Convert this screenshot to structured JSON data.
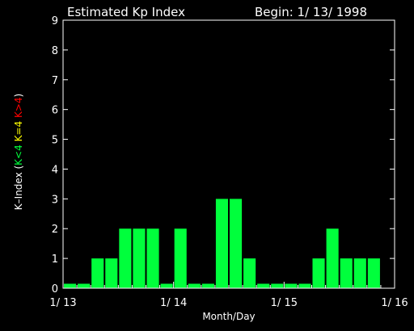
{
  "colors": {
    "background": "#000000",
    "foreground": "#ffffff",
    "bar": "#00ff3c",
    "low": "#00ff3c",
    "mid": "#ffff00",
    "high": "#ff0000"
  },
  "header": {
    "title": "Estimated Kp Index",
    "begin": "Begin: 1/ 13/ 1998"
  },
  "chart_data": {
    "type": "bar",
    "title": "Estimated Kp Index",
    "xlabel": "Month/Day",
    "ylabel": {
      "prefix": "K–Index (",
      "low": "K<4",
      "mid": "K=4",
      "high": "K>4",
      "suffix": ")"
    },
    "ylim": [
      0,
      9
    ],
    "yticks": [
      0,
      1,
      2,
      3,
      4,
      5,
      6,
      7,
      8,
      9
    ],
    "xlim": [
      0,
      24
    ],
    "xticks": [
      {
        "pos": 0,
        "label": "1/ 13"
      },
      {
        "pos": 8,
        "label": "1/ 14"
      },
      {
        "pos": 16,
        "label": "1/ 15"
      },
      {
        "pos": 24,
        "label": "1/ 16"
      }
    ],
    "bar_min_height": 0.15,
    "values": [
      0,
      0,
      1,
      1,
      2,
      2,
      2,
      0,
      2,
      0,
      0,
      3,
      3,
      1,
      0,
      0,
      0,
      0,
      1,
      2,
      1,
      1,
      1
    ]
  }
}
